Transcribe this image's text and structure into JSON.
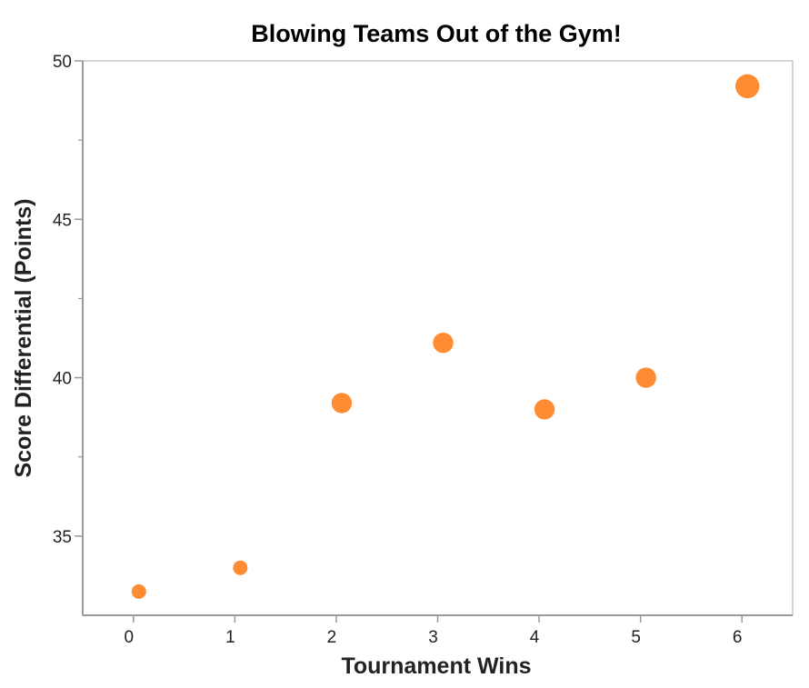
{
  "chart_data": {
    "type": "scatter",
    "title": "Blowing Teams Out of the Gym!",
    "xlabel": "Tournament Wins",
    "ylabel": "Score Differential (Points)",
    "xlim": [
      -0.5,
      6.5
    ],
    "ylim": [
      32.5,
      50
    ],
    "xticks": [
      0,
      1,
      2,
      3,
      4,
      5,
      6
    ],
    "yticks": [
      35,
      40,
      45,
      50
    ],
    "yminor_ticks": [
      37.5,
      42.5,
      47.5
    ],
    "grid": false,
    "color": "#FF8C33",
    "points": [
      {
        "x": 0,
        "y": 33.25,
        "size": 1.0
      },
      {
        "x": 1,
        "y": 34.0,
        "size": 1.0
      },
      {
        "x": 2,
        "y": 39.2,
        "size": 1.4
      },
      {
        "x": 3,
        "y": 41.1,
        "size": 1.4
      },
      {
        "x": 4,
        "y": 39.0,
        "size": 1.4
      },
      {
        "x": 5,
        "y": 40.0,
        "size": 1.4
      },
      {
        "x": 6,
        "y": 49.2,
        "size": 1.65
      }
    ]
  }
}
